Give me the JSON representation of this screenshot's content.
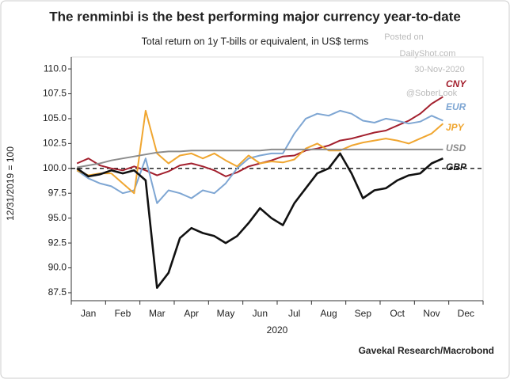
{
  "chart_data": {
    "type": "line",
    "title": "The renminbi is the best performing major currency year-to-date",
    "subtitle": "Total return on 1y T-bills or equivalent, in US$ terms",
    "watermark": [
      "Posted on",
      "DailyShot.com",
      "30-Nov-2020",
      "@SoberLook"
    ],
    "source": "Gavekal Research/Macrobond",
    "y_label": "12/31/2019 = 100",
    "x_label": "2020",
    "categories": [
      null,
      "Jan",
      null,
      null,
      "Feb",
      null,
      null,
      "Mar",
      null,
      null,
      "Apr",
      null,
      null,
      "May",
      null,
      null,
      "Jun",
      null,
      null,
      "Jul",
      null,
      null,
      "Aug",
      null,
      null,
      "Sep",
      null,
      null,
      "Oct",
      null,
      null,
      "Nov",
      null,
      null,
      "Dec",
      null
    ],
    "reference_line": 100,
    "ylim": [
      86.7,
      111.2
    ],
    "yticks": [
      {
        "value": 87.5,
        "label": "87.5"
      },
      {
        "value": 90,
        "label": "90.0"
      },
      92.5,
      {
        "value": 95,
        "label": "95.0"
      },
      97.5,
      {
        "value": 100,
        "label": "100.0"
      },
      102.5,
      {
        "value": 105,
        "label": "105.0"
      },
      107.5,
      {
        "value": 110,
        "label": "110.0"
      }
    ],
    "series": [
      {
        "name": "CNY",
        "color": "#a3202e",
        "values": [
          100.5,
          101,
          100.3,
          100,
          99.8,
          100.2,
          99.8,
          99.3,
          99.7,
          100.3,
          100.5,
          100.2,
          99.8,
          99.2,
          99.6,
          100.2,
          100.5,
          100.8,
          101.2,
          101.3,
          101.8,
          102,
          102.3,
          102.8,
          103,
          103.3,
          103.6,
          103.8,
          104.3,
          104.8,
          105.5,
          106.5,
          107.2,
          null,
          null,
          null
        ]
      },
      {
        "name": "EUR",
        "color": "#7ea6d3",
        "values": [
          99.8,
          99,
          98.5,
          98.2,
          97.5,
          97.8,
          101,
          96.5,
          97.8,
          97.5,
          97,
          97.8,
          97.5,
          98.5,
          100,
          101,
          101.3,
          101.5,
          101.5,
          103.5,
          105,
          105.5,
          105.3,
          105.8,
          105.5,
          104.8,
          104.6,
          105,
          104.8,
          104.5,
          104.7,
          105.3,
          104.8,
          null,
          null,
          null
        ]
      },
      {
        "name": "JPY",
        "color": "#f0a630",
        "values": [
          99.8,
          99.3,
          99.5,
          99.5,
          98.5,
          97.5,
          105.8,
          101.5,
          100.5,
          101.3,
          101.5,
          101,
          101.5,
          100.8,
          100.2,
          101.3,
          100.5,
          100.7,
          100.6,
          100.9,
          102,
          102.5,
          101.8,
          101.8,
          102.3,
          102.6,
          102.8,
          103,
          102.8,
          102.5,
          103,
          103.5,
          104.5,
          null,
          null,
          null
        ]
      },
      {
        "name": "USD",
        "color": "#8c8c8c",
        "values": [
          100.1,
          100.3,
          100.5,
          100.8,
          101,
          101.2,
          101.4,
          101.6,
          101.7,
          101.7,
          101.8,
          101.8,
          101.8,
          101.8,
          101.8,
          101.8,
          101.8,
          101.9,
          101.9,
          101.9,
          101.9,
          101.9,
          101.9,
          101.9,
          101.9,
          101.9,
          101.9,
          101.9,
          101.9,
          101.9,
          101.9,
          101.9,
          101.9,
          null,
          null,
          null
        ]
      },
      {
        "name": "GBP",
        "color": "#111111",
        "values": [
          100,
          99.2,
          99.4,
          99.8,
          99.5,
          99.8,
          98.8,
          88,
          89.5,
          93,
          94,
          93.5,
          93.2,
          92.5,
          93.2,
          94.5,
          96,
          95,
          94.3,
          96.5,
          98,
          99.5,
          100,
          101.5,
          99.5,
          97,
          97.8,
          98,
          98.8,
          99.3,
          99.5,
          100.5,
          101,
          null,
          null,
          null
        ]
      }
    ]
  }
}
